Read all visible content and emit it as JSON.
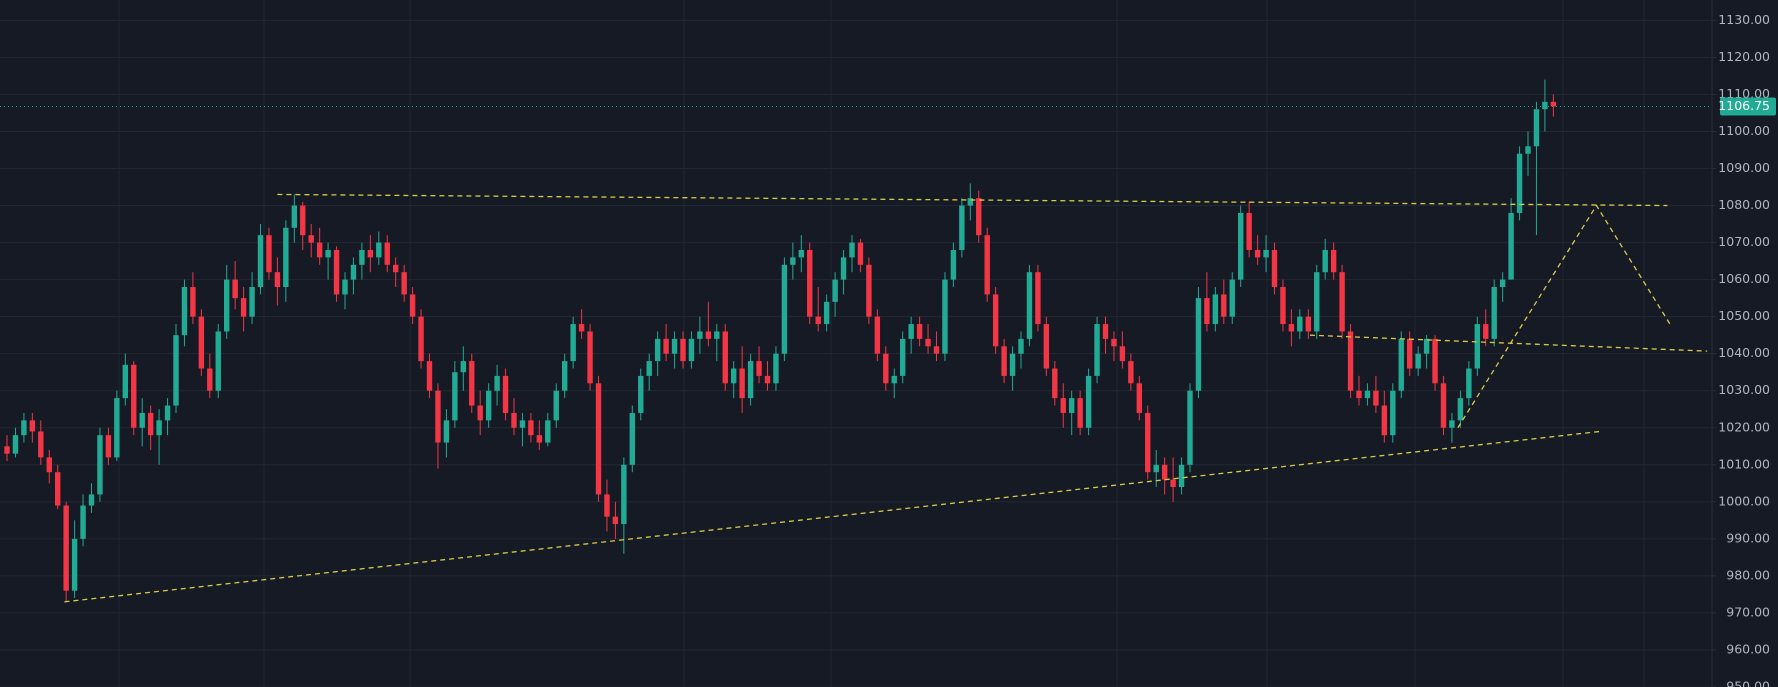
{
  "chart_data": {
    "type": "candlestick",
    "up_color": "#22ab94",
    "down_color": "#f23645",
    "ylim": [
      950,
      1135.5
    ],
    "yticks": [
      {
        "value": 950,
        "label": "950.00"
      },
      {
        "value": 960,
        "label": "960.00"
      },
      {
        "value": 970,
        "label": "970.00"
      },
      {
        "value": 980,
        "label": "980.00"
      },
      {
        "value": 990,
        "label": "990.00"
      },
      {
        "value": 1000,
        "label": "1000.00"
      },
      {
        "value": 1010,
        "label": "1010.00"
      },
      {
        "value": 1020,
        "label": "1020.00"
      },
      {
        "value": 1030,
        "label": "1030.00"
      },
      {
        "value": 1040,
        "label": "1040.00"
      },
      {
        "value": 1050,
        "label": "1050.00"
      },
      {
        "value": 1060,
        "label": "1060.00"
      },
      {
        "value": 1070,
        "label": "1070.00"
      },
      {
        "value": 1080,
        "label": "1080.00"
      },
      {
        "value": 1090,
        "label": "1090.00"
      },
      {
        "value": 1100,
        "label": "1100.00"
      },
      {
        "value": 1110,
        "label": "1110.00"
      },
      {
        "value": 1120,
        "label": "1120.00"
      },
      {
        "value": 1130,
        "label": "1130.00"
      }
    ],
    "grid": true,
    "last_price": 1106.75,
    "last_price_color": "#22ab94",
    "trendline_color": "#d9c94a",
    "trendlines": [
      {
        "points": [
          [
            32,
            1083
          ],
          [
            196.5,
            1080
          ]
        ]
      },
      {
        "points": [
          [
            6.8,
            973
          ],
          [
            188.5,
            1019
          ]
        ]
      },
      {
        "points": [
          [
            154.2,
            1045
          ],
          [
            201.2,
            1040.7
          ]
        ]
      },
      {
        "points": [
          [
            171.7,
            1020
          ],
          [
            188.1,
            1080
          ],
          [
            196.8,
            1048
          ]
        ]
      }
    ],
    "values": [
      [
        1015,
        1018,
        1011,
        1013
      ],
      [
        1013,
        1020,
        1012,
        1018
      ],
      [
        1018,
        1024,
        1016,
        1022
      ],
      [
        1022,
        1024,
        1016,
        1019
      ],
      [
        1019,
        1022,
        1010,
        1012
      ],
      [
        1012,
        1014,
        1005,
        1008
      ],
      [
        1008,
        1010,
        998,
        999
      ],
      [
        999,
        1000,
        973,
        976
      ],
      [
        976,
        995,
        974,
        990
      ],
      [
        990,
        1002,
        988,
        999
      ],
      [
        999,
        1005,
        997,
        1002
      ],
      [
        1002,
        1020,
        1000,
        1018
      ],
      [
        1018,
        1020,
        1010,
        1012
      ],
      [
        1012,
        1030,
        1011,
        1028
      ],
      [
        1028,
        1040,
        1026,
        1037
      ],
      [
        1037,
        1038,
        1018,
        1020
      ],
      [
        1020,
        1028,
        1015,
        1024
      ],
      [
        1024,
        1026,
        1014,
        1018
      ],
      [
        1018,
        1025,
        1010,
        1022
      ],
      [
        1022,
        1028,
        1018,
        1026
      ],
      [
        1026,
        1048,
        1024,
        1045
      ],
      [
        1045,
        1060,
        1042,
        1058
      ],
      [
        1058,
        1062,
        1048,
        1050
      ],
      [
        1050,
        1052,
        1034,
        1036
      ],
      [
        1036,
        1040,
        1028,
        1030
      ],
      [
        1030,
        1048,
        1028,
        1046
      ],
      [
        1046,
        1064,
        1044,
        1060
      ],
      [
        1060,
        1065,
        1052,
        1055
      ],
      [
        1055,
        1058,
        1046,
        1050
      ],
      [
        1050,
        1062,
        1048,
        1058
      ],
      [
        1058,
        1075,
        1056,
        1072
      ],
      [
        1072,
        1074,
        1060,
        1062
      ],
      [
        1062,
        1066,
        1053,
        1058
      ],
      [
        1058,
        1076,
        1054,
        1074
      ],
      [
        1074,
        1083,
        1070,
        1080
      ],
      [
        1080,
        1081,
        1068,
        1072
      ],
      [
        1072,
        1075,
        1066,
        1070
      ],
      [
        1070,
        1074,
        1064,
        1066
      ],
      [
        1066,
        1070,
        1060,
        1068
      ],
      [
        1068,
        1069,
        1054,
        1056
      ],
      [
        1056,
        1062,
        1052,
        1060
      ],
      [
        1060,
        1066,
        1056,
        1064
      ],
      [
        1064,
        1070,
        1060,
        1068
      ],
      [
        1068,
        1072,
        1062,
        1066
      ],
      [
        1066,
        1073,
        1064,
        1070
      ],
      [
        1070,
        1072,
        1062,
        1064
      ],
      [
        1064,
        1066,
        1058,
        1062
      ],
      [
        1062,
        1064,
        1054,
        1056
      ],
      [
        1056,
        1058,
        1048,
        1050
      ],
      [
        1050,
        1052,
        1036,
        1038
      ],
      [
        1038,
        1040,
        1028,
        1030
      ],
      [
        1030,
        1032,
        1009,
        1016
      ],
      [
        1016,
        1025,
        1012,
        1022
      ],
      [
        1022,
        1038,
        1020,
        1035
      ],
      [
        1035,
        1042,
        1030,
        1038
      ],
      [
        1038,
        1040,
        1024,
        1026
      ],
      [
        1026,
        1030,
        1018,
        1022
      ],
      [
        1022,
        1032,
        1020,
        1030
      ],
      [
        1030,
        1037,
        1026,
        1034
      ],
      [
        1034,
        1036,
        1022,
        1024
      ],
      [
        1024,
        1028,
        1018,
        1020
      ],
      [
        1020,
        1024,
        1015,
        1022
      ],
      [
        1022,
        1024,
        1016,
        1018
      ],
      [
        1018,
        1022,
        1014,
        1016
      ],
      [
        1016,
        1024,
        1015,
        1022
      ],
      [
        1022,
        1032,
        1020,
        1030
      ],
      [
        1030,
        1040,
        1028,
        1038
      ],
      [
        1038,
        1050,
        1036,
        1048
      ],
      [
        1048,
        1052,
        1044,
        1046
      ],
      [
        1046,
        1048,
        1030,
        1032
      ],
      [
        1032,
        1034,
        1000,
        1002
      ],
      [
        1002,
        1006,
        992,
        996
      ],
      [
        996,
        1000,
        990,
        994
      ],
      [
        994,
        1012,
        986,
        1010
      ],
      [
        1010,
        1026,
        1008,
        1024
      ],
      [
        1024,
        1036,
        1022,
        1034
      ],
      [
        1034,
        1040,
        1030,
        1038
      ],
      [
        1038,
        1046,
        1034,
        1044
      ],
      [
        1044,
        1048,
        1038,
        1040
      ],
      [
        1040,
        1046,
        1036,
        1044
      ],
      [
        1044,
        1046,
        1036,
        1038
      ],
      [
        1038,
        1046,
        1036,
        1044
      ],
      [
        1044,
        1050,
        1040,
        1046
      ],
      [
        1046,
        1054,
        1042,
        1044
      ],
      [
        1044,
        1048,
        1038,
        1046
      ],
      [
        1046,
        1048,
        1030,
        1032
      ],
      [
        1032,
        1038,
        1028,
        1036
      ],
      [
        1036,
        1042,
        1024,
        1028
      ],
      [
        1028,
        1040,
        1026,
        1038
      ],
      [
        1038,
        1042,
        1032,
        1034
      ],
      [
        1034,
        1038,
        1030,
        1032
      ],
      [
        1032,
        1042,
        1030,
        1040
      ],
      [
        1040,
        1066,
        1038,
        1064
      ],
      [
        1064,
        1070,
        1060,
        1066
      ],
      [
        1066,
        1072,
        1062,
        1068
      ],
      [
        1068,
        1070,
        1048,
        1050
      ],
      [
        1050,
        1058,
        1046,
        1048
      ],
      [
        1048,
        1056,
        1046,
        1054
      ],
      [
        1054,
        1062,
        1050,
        1060
      ],
      [
        1060,
        1068,
        1056,
        1066
      ],
      [
        1066,
        1072,
        1062,
        1070
      ],
      [
        1070,
        1071,
        1062,
        1064
      ],
      [
        1064,
        1066,
        1048,
        1050
      ],
      [
        1050,
        1052,
        1038,
        1040
      ],
      [
        1040,
        1042,
        1030,
        1032
      ],
      [
        1032,
        1036,
        1028,
        1034
      ],
      [
        1034,
        1046,
        1032,
        1044
      ],
      [
        1044,
        1050,
        1040,
        1048
      ],
      [
        1048,
        1050,
        1042,
        1044
      ],
      [
        1044,
        1048,
        1040,
        1042
      ],
      [
        1042,
        1046,
        1038,
        1040
      ],
      [
        1040,
        1062,
        1038,
        1060
      ],
      [
        1060,
        1070,
        1058,
        1068
      ],
      [
        1068,
        1082,
        1066,
        1080
      ],
      [
        1080,
        1086,
        1076,
        1082
      ],
      [
        1082,
        1084,
        1070,
        1072
      ],
      [
        1072,
        1074,
        1054,
        1056
      ],
      [
        1056,
        1058,
        1040,
        1042
      ],
      [
        1042,
        1044,
        1032,
        1034
      ],
      [
        1034,
        1042,
        1030,
        1040
      ],
      [
        1040,
        1046,
        1036,
        1044
      ],
      [
        1044,
        1064,
        1042,
        1062
      ],
      [
        1062,
        1064,
        1046,
        1048
      ],
      [
        1048,
        1050,
        1034,
        1036
      ],
      [
        1036,
        1038,
        1026,
        1028
      ],
      [
        1028,
        1032,
        1020,
        1024
      ],
      [
        1024,
        1030,
        1018,
        1028
      ],
      [
        1028,
        1030,
        1018,
        1020
      ],
      [
        1020,
        1036,
        1018,
        1034
      ],
      [
        1034,
        1050,
        1032,
        1048
      ],
      [
        1048,
        1050,
        1040,
        1044
      ],
      [
        1044,
        1046,
        1038,
        1042
      ],
      [
        1042,
        1046,
        1036,
        1038
      ],
      [
        1038,
        1040,
        1030,
        1032
      ],
      [
        1032,
        1034,
        1022,
        1024
      ],
      [
        1024,
        1026,
        1006,
        1008
      ],
      [
        1008,
        1014,
        1004,
        1010
      ],
      [
        1010,
        1012,
        1002,
        1006
      ],
      [
        1006,
        1012,
        1000,
        1004
      ],
      [
        1004,
        1012,
        1002,
        1010
      ],
      [
        1010,
        1032,
        1008,
        1030
      ],
      [
        1030,
        1058,
        1028,
        1055
      ],
      [
        1055,
        1062,
        1046,
        1048
      ],
      [
        1048,
        1058,
        1046,
        1056
      ],
      [
        1056,
        1060,
        1048,
        1050
      ],
      [
        1050,
        1062,
        1048,
        1060
      ],
      [
        1060,
        1080,
        1058,
        1078
      ],
      [
        1078,
        1081,
        1066,
        1068
      ],
      [
        1068,
        1072,
        1064,
        1066
      ],
      [
        1066,
        1072,
        1062,
        1068
      ],
      [
        1068,
        1070,
        1056,
        1058
      ],
      [
        1058,
        1060,
        1046,
        1048
      ],
      [
        1048,
        1052,
        1042,
        1046
      ],
      [
        1046,
        1052,
        1044,
        1050
      ],
      [
        1050,
        1052,
        1044,
        1046
      ],
      [
        1046,
        1064,
        1044,
        1062
      ],
      [
        1062,
        1071,
        1060,
        1068
      ],
      [
        1068,
        1070,
        1060,
        1062
      ],
      [
        1062,
        1064,
        1044,
        1046
      ],
      [
        1046,
        1048,
        1028,
        1030
      ],
      [
        1030,
        1034,
        1026,
        1028
      ],
      [
        1028,
        1032,
        1026,
        1030
      ],
      [
        1030,
        1034,
        1024,
        1026
      ],
      [
        1026,
        1030,
        1016,
        1018
      ],
      [
        1018,
        1032,
        1016,
        1030
      ],
      [
        1030,
        1046,
        1028,
        1044
      ],
      [
        1044,
        1046,
        1034,
        1036
      ],
      [
        1036,
        1042,
        1034,
        1040
      ],
      [
        1040,
        1045,
        1036,
        1044
      ],
      [
        1044,
        1045,
        1030,
        1032
      ],
      [
        1032,
        1034,
        1018,
        1020
      ],
      [
        1020,
        1024,
        1016,
        1022
      ],
      [
        1022,
        1030,
        1020,
        1028
      ],
      [
        1028,
        1038,
        1026,
        1036
      ],
      [
        1036,
        1050,
        1034,
        1048
      ],
      [
        1048,
        1052,
        1042,
        1044
      ],
      [
        1044,
        1060,
        1042,
        1058
      ],
      [
        1058,
        1062,
        1054,
        1060
      ],
      [
        1060,
        1082,
        1070,
        1078
      ],
      [
        1078,
        1096,
        1076,
        1094
      ],
      [
        1094,
        1100,
        1088,
        1096
      ],
      [
        1096,
        1108,
        1072,
        1106
      ],
      [
        1106,
        1114,
        1100,
        1108
      ],
      [
        1108,
        1110,
        1104,
        1106.75
      ]
    ]
  }
}
